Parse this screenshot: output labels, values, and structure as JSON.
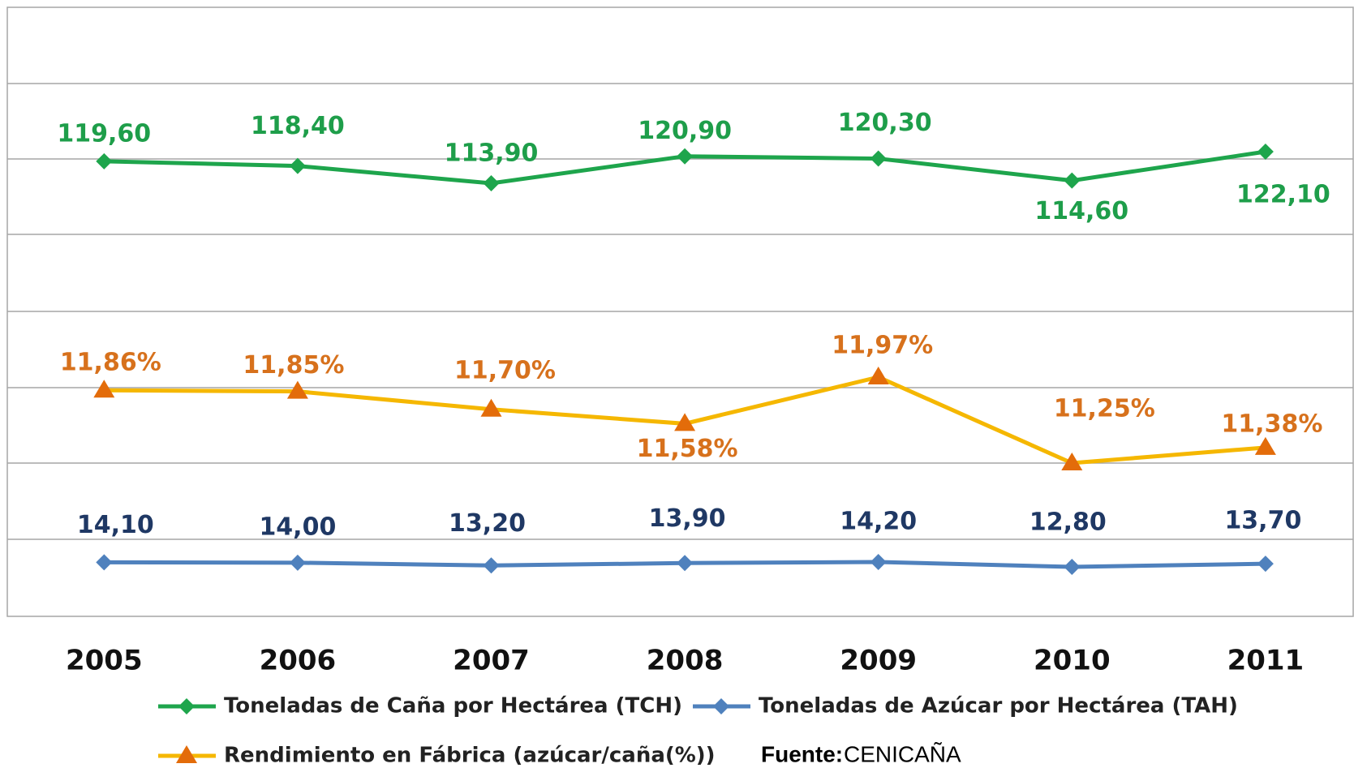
{
  "chart_data": {
    "type": "line",
    "categories": [
      "2005",
      "2006",
      "2007",
      "2008",
      "2009",
      "2010",
      "2011"
    ],
    "series": [
      {
        "name": "Toneladas de Caña por Hectárea (TCH)",
        "color": "#1ea54c",
        "label_color": "#1e9e4a",
        "marker": "diamond",
        "values": [
          119.6,
          118.4,
          113.9,
          120.9,
          120.3,
          114.6,
          122.1
        ],
        "value_labels": [
          "119,60",
          "118,40",
          "113,90",
          "120,90",
          "120,30",
          "114,60",
          "122,10"
        ]
      },
      {
        "name": "Toneladas de Azúcar por Hectárea (TAH)",
        "color": "#4f81bd",
        "label_color": "#1f3864",
        "marker": "diamond",
        "values": [
          14.1,
          14.0,
          13.2,
          13.9,
          14.2,
          12.8,
          13.7
        ],
        "value_labels": [
          "14,10",
          "14,00",
          "13,20",
          "13,90",
          "14,20",
          "12,80",
          "13,70"
        ]
      },
      {
        "name": "Rendimiento en Fábrica (azúcar/caña(%))",
        "color": "#f5b700",
        "label_color": "#d7711c",
        "marker": "triangle",
        "values": [
          11.86,
          11.85,
          11.7,
          11.58,
          11.97,
          11.25,
          11.38
        ],
        "value_labels": [
          "11,86%",
          "11,85%",
          "11,70%",
          "11,58%",
          "11,97%",
          "11,25%",
          "11,38%"
        ]
      }
    ],
    "source_label": "Fuente:",
    "source": "CENICAÑA"
  }
}
